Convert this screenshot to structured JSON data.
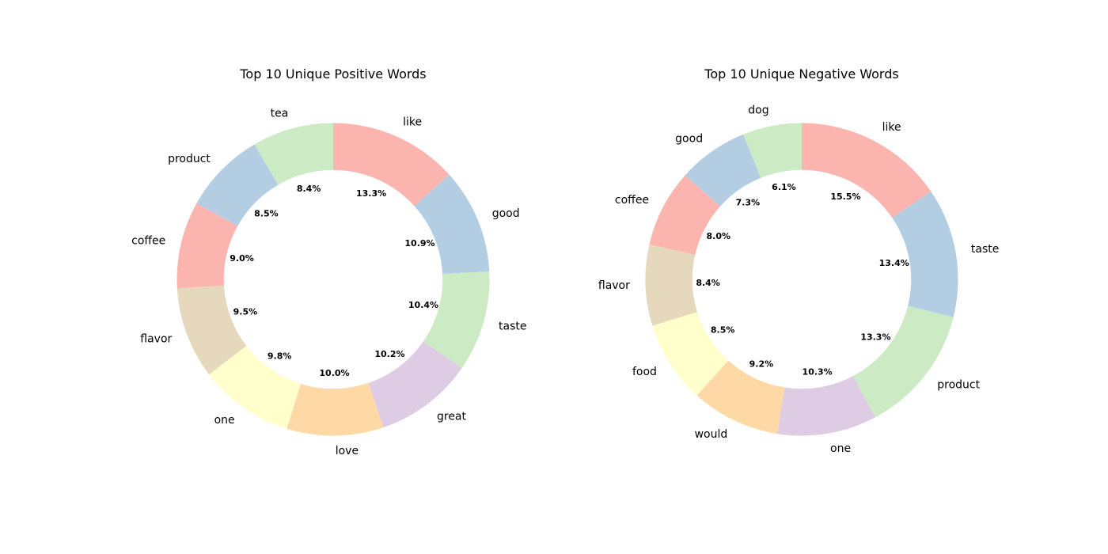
{
  "chart_data": [
    {
      "type": "pie",
      "variant": "donut",
      "title": "Top 10 Unique Positive Words",
      "labels": [
        "like",
        "good",
        "taste",
        "great",
        "love",
        "one",
        "flavor",
        "coffee",
        "product",
        "tea"
      ],
      "values": [
        13.3,
        10.9,
        10.4,
        10.2,
        10.0,
        9.8,
        9.5,
        9.0,
        8.5,
        8.4
      ],
      "percent_labels": [
        "13.3%",
        "10.9%",
        "10.4%",
        "10.2%",
        "10.0%",
        "9.8%",
        "9.5%",
        "9.0%",
        "8.5%",
        "8.4%"
      ],
      "colors": [
        "#fbb4ae",
        "#b3cde3",
        "#ccebc5",
        "#decbe4",
        "#fed9a6",
        "#ffffcc",
        "#e5d8bd",
        "#fbb4ae",
        "#b3cde3",
        "#ccebc5"
      ]
    },
    {
      "type": "pie",
      "variant": "donut",
      "title": "Top 10 Unique Negative Words",
      "labels": [
        "like",
        "taste",
        "product",
        "one",
        "would",
        "food",
        "flavor",
        "coffee",
        "good",
        "dog"
      ],
      "values": [
        15.5,
        13.4,
        13.3,
        10.3,
        9.2,
        8.5,
        8.4,
        8.0,
        7.3,
        6.1
      ],
      "percent_labels": [
        "15.5%",
        "13.4%",
        "13.3%",
        "10.3%",
        "9.2%",
        "8.5%",
        "8.4%",
        "8.0%",
        "7.3%",
        "6.1%"
      ],
      "colors": [
        "#fbb4ae",
        "#b3cde3",
        "#ccebc5",
        "#decbe4",
        "#fed9a6",
        "#ffffcc",
        "#e5d8bd",
        "#fbb4ae",
        "#b3cde3",
        "#ccebc5"
      ]
    }
  ]
}
